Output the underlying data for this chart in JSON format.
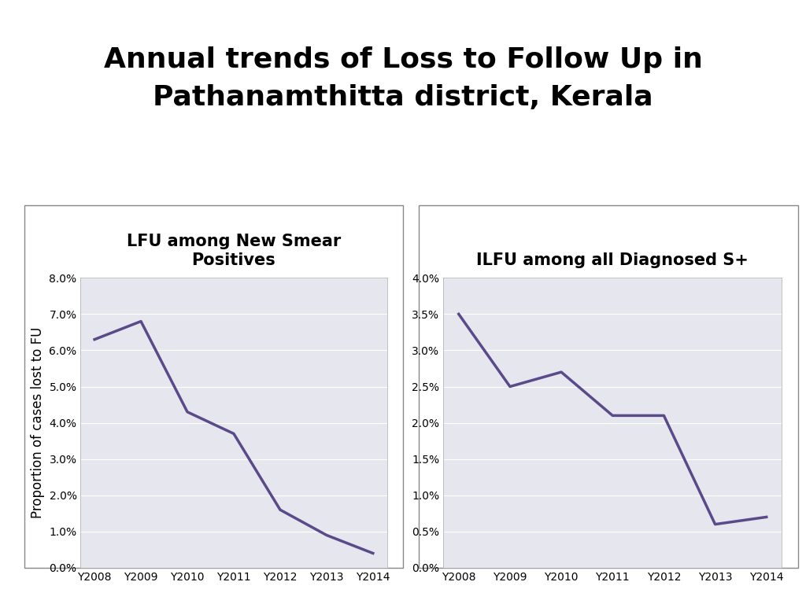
{
  "title": "Annual trends of Loss to Follow Up in\nPathanamthitta district, Kerala",
  "title_fontsize": 26,
  "title_fontweight": "bold",
  "background_color": "#ffffff",
  "plot_bg_color": "#e6e6ee",
  "line_color": "#5b4a8a",
  "line_width": 2.5,
  "years": [
    "Y2008",
    "Y2009",
    "Y2010",
    "Y2011",
    "Y2012",
    "Y2013",
    "Y2014"
  ],
  "left_chart": {
    "title": "LFU among New Smear\nPositives",
    "title_fontsize": 15,
    "title_fontweight": "bold",
    "ylabel": "Proportion of cases lost to FU",
    "ylabel_fontsize": 12,
    "values": [
      0.063,
      0.068,
      0.043,
      0.037,
      0.016,
      0.009,
      0.004
    ],
    "ylim": [
      0.0,
      0.08
    ],
    "yticks": [
      0.0,
      0.01,
      0.02,
      0.03,
      0.04,
      0.05,
      0.06,
      0.07,
      0.08
    ],
    "ytick_labels": [
      "0.0%",
      "1.0%",
      "2.0%",
      "3.0%",
      "4.0%",
      "5.0%",
      "6.0%",
      "7.0%",
      "8.0%"
    ]
  },
  "right_chart": {
    "title": "ILFU among all Diagnosed S+",
    "title_fontsize": 15,
    "title_fontweight": "bold",
    "values": [
      0.035,
      0.025,
      0.027,
      0.021,
      0.021,
      0.006,
      0.007
    ],
    "ylim": [
      0.0,
      0.04
    ],
    "yticks": [
      0.0,
      0.005,
      0.01,
      0.015,
      0.02,
      0.025,
      0.03,
      0.035,
      0.04
    ],
    "ytick_labels": [
      "0.0%",
      "0.5%",
      "1.0%",
      "1.5%",
      "2.0%",
      "2.5%",
      "3.0%",
      "3.5%",
      "4.0%"
    ]
  }
}
